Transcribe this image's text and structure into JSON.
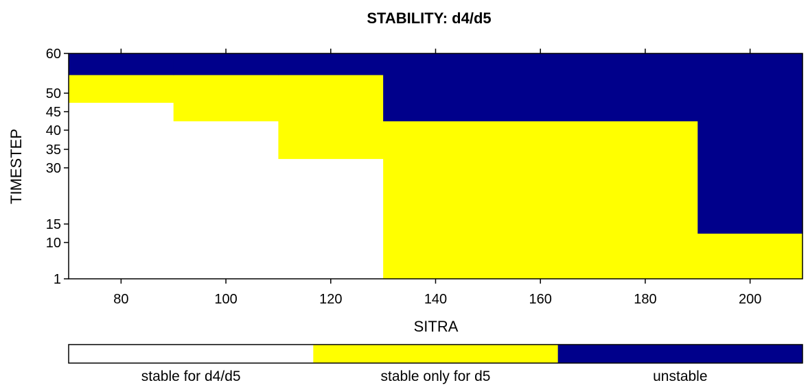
{
  "chart_data": {
    "type": "heatmap",
    "title": "STABILITY: d4/d5",
    "xlabel": "SITRA",
    "ylabel": "TIMESTEP",
    "xlim": [
      70,
      210
    ],
    "ylim": [
      1,
      60
    ],
    "x_ticks": [
      80,
      100,
      120,
      140,
      160,
      180,
      200
    ],
    "y_ticks": [
      1,
      10,
      15,
      30,
      35,
      40,
      45,
      50,
      60
    ],
    "x_edges": [
      70,
      90,
      110,
      130,
      190,
      210
    ],
    "y_edges": [
      1,
      12.5,
      32.5,
      42.5,
      47.5,
      55,
      60
    ],
    "categories": [
      {
        "code": 0,
        "label": "stable for d4/d5",
        "color": "#ffffff"
      },
      {
        "code": 1,
        "label": "stable only for d5",
        "color": "#ffff00"
      },
      {
        "code": 2,
        "label": "unstable",
        "color": "#00008b"
      }
    ],
    "values": [
      [
        0,
        0,
        0,
        1,
        1
      ],
      [
        0,
        0,
        0,
        1,
        2
      ],
      [
        0,
        0,
        1,
        1,
        2
      ],
      [
        0,
        1,
        1,
        2,
        2
      ],
      [
        1,
        1,
        1,
        2,
        2
      ],
      [
        2,
        2,
        2,
        2,
        2
      ]
    ],
    "legend_position": "bottom"
  }
}
